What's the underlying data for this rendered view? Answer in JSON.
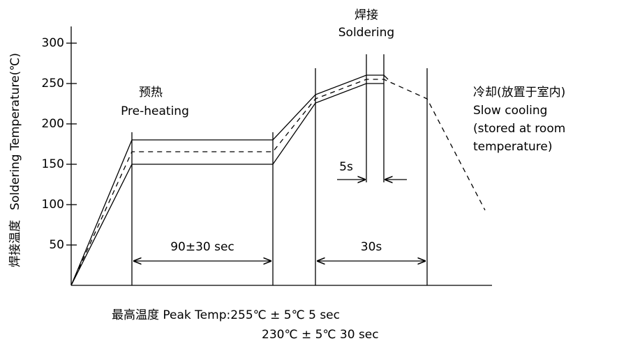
{
  "axis": {
    "label_cn": "焊接温度",
    "label_en": "Soldering Temperature(℃)",
    "ticks": [
      50,
      100,
      150,
      200,
      250,
      300
    ]
  },
  "labels": {
    "preheat_cn": "预热",
    "preheat_en": "Pre-heating",
    "solder_cn": "焊接",
    "solder_en": "Soldering",
    "cool_cn": "冷却(放置于室内)",
    "cool_1": "Slow cooling",
    "cool_2": "(stored at room",
    "cool_3": "temperature)",
    "preheat_time": "90±30 sec",
    "solder_time": "30s",
    "peak_time": "5s"
  },
  "footer": {
    "line1": "最高温度  Peak Temp:255℃ ± 5℃  5 sec",
    "line2": "230℃ ± 5℃  30 sec"
  }
}
